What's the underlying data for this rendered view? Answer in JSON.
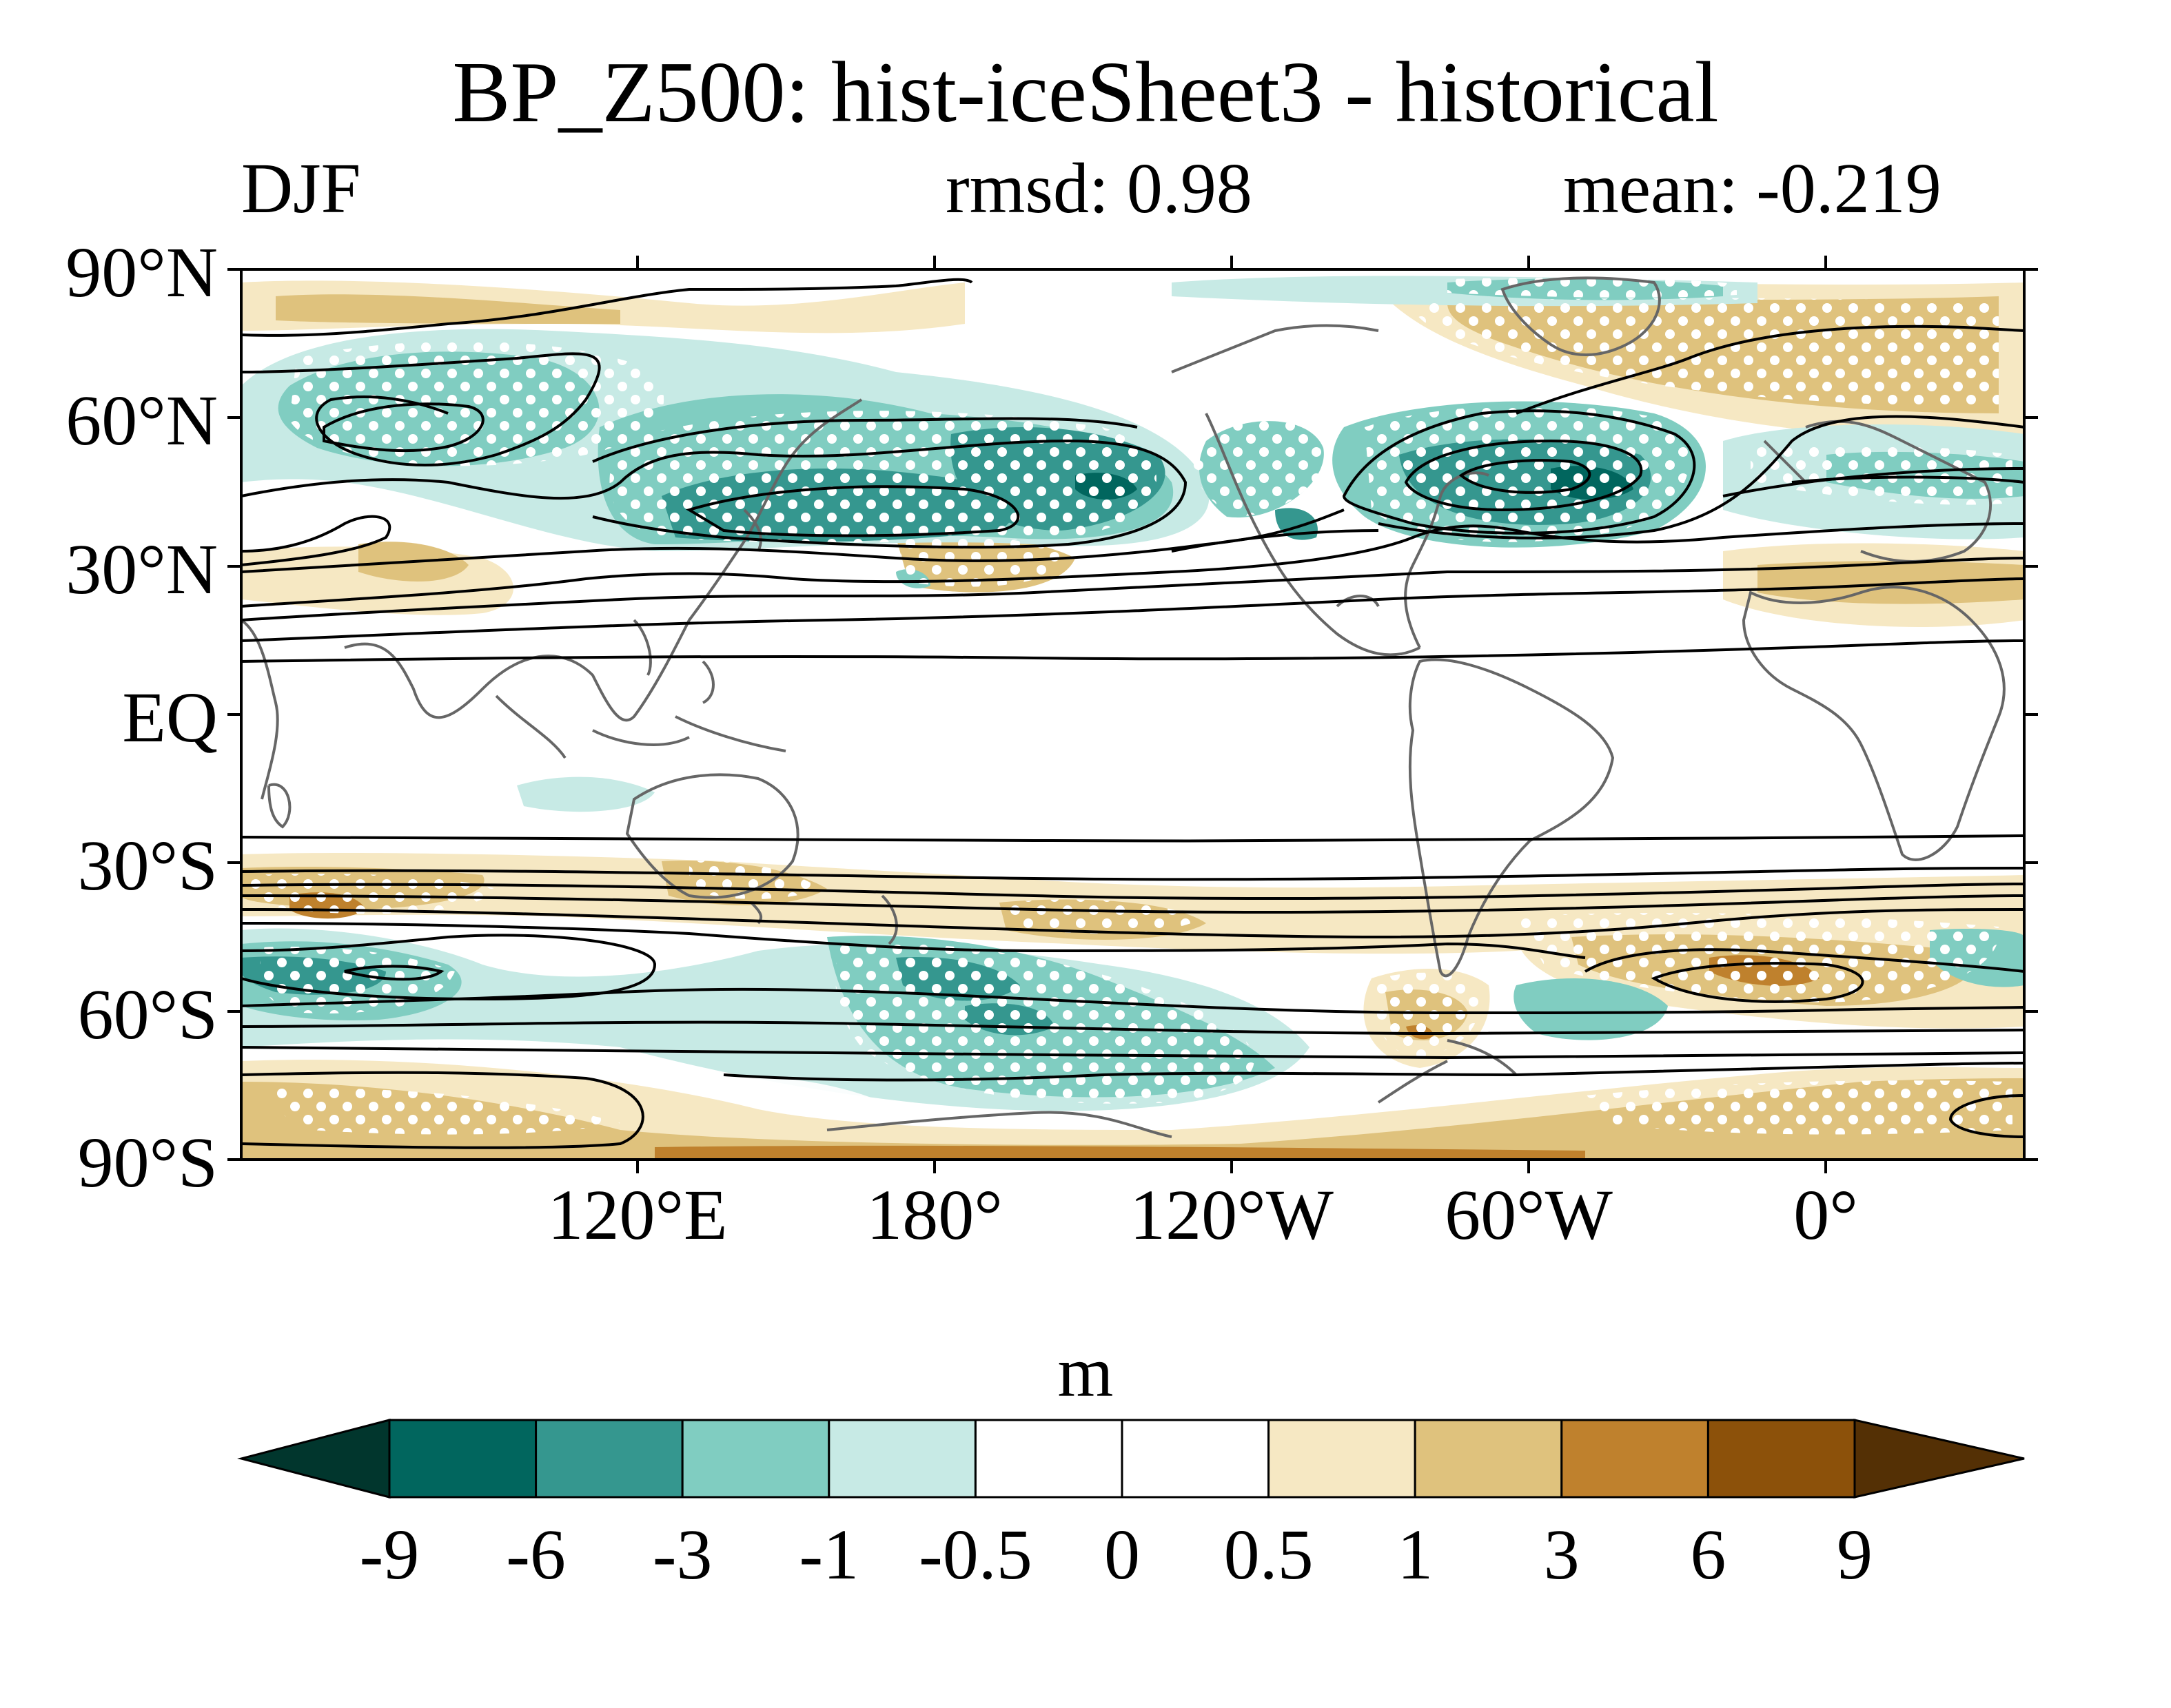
{
  "title": "BP_Z500: hist-iceSheet3 - historical",
  "season": "DJF",
  "rmsd": "rmsd: 0.98",
  "mean": "mean: -0.219",
  "lat_labels": [
    "90°N",
    "60°N",
    "30°N",
    "EQ",
    "30°S",
    "60°S",
    "90°S"
  ],
  "lon_labels": [
    "120°E",
    "180°",
    "120°W",
    "60°W",
    "0°"
  ],
  "colorbar": {
    "units": "m",
    "labels": [
      "-9",
      "-6",
      "-3",
      "-1",
      "-0.5",
      "0",
      "0.5",
      "1",
      "3",
      "6",
      "9"
    ],
    "colors": [
      "#01362d",
      "#01665e",
      "#35978f",
      "#80cdc1",
      "#c7eae5",
      "#ffffff",
      "#ffffff",
      "#f6e8c3",
      "#dfc27d",
      "#bf812d",
      "#8c510a",
      "#543005"
    ]
  },
  "map": {
    "lon_range": [
      40,
      400
    ],
    "lat_range": [
      -90,
      90
    ],
    "projection": "cylindrical equidistant",
    "coastline_color": "#666666",
    "contour_color": "#000000",
    "stipple_color": "#ffffff"
  }
}
